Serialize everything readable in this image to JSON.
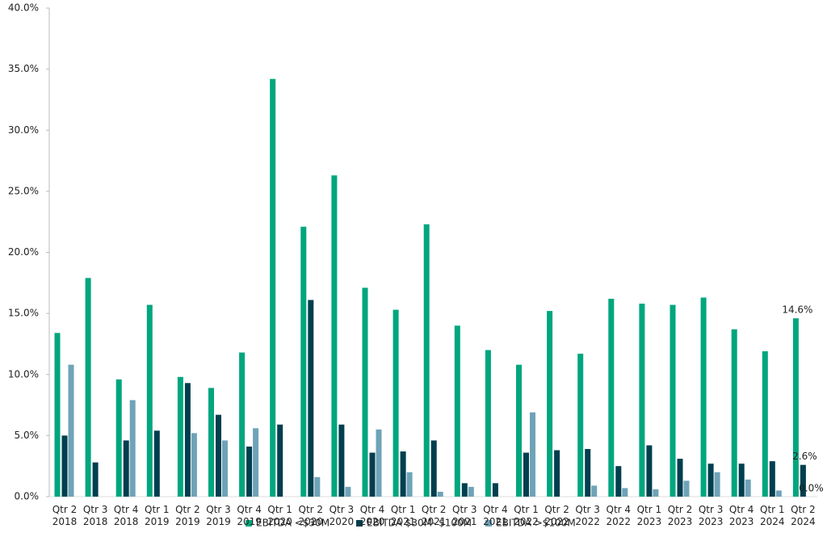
{
  "chart_data": {
    "type": "bar",
    "categories": [
      "Qtr 2 2018",
      "Qtr 3 2018",
      "Qtr 4 2018",
      "Qtr 1 2019",
      "Qtr 2 2019",
      "Qtr 3 2019",
      "Qtr 4 2019",
      "Qtr 1 2020",
      "Qtr 2 2020",
      "Qtr 3 2020",
      "Qtr 4 2020",
      "Qtr 1 2021",
      "Qtr 2 2021",
      "Qtr 3 2021",
      "Qtr 4 2021",
      "Qtr 1 2022",
      "Qtr 2 2022",
      "Qtr 3 2022",
      "Qtr 4 2022",
      "Qtr 1 2023",
      "Qtr 2 2023",
      "Qtr 3 2023",
      "Qtr 4 2023",
      "Qtr 1 2024",
      "Qtr 2 2024"
    ],
    "series": [
      {
        "name": "EBITDA <$30M",
        "color": "#00a67e",
        "values": [
          13.4,
          17.9,
          9.6,
          15.7,
          9.8,
          8.9,
          11.8,
          34.2,
          22.1,
          26.3,
          17.1,
          15.3,
          22.3,
          14.0,
          12.0,
          10.8,
          15.2,
          11.7,
          16.2,
          15.8,
          15.7,
          16.3,
          13.7,
          11.9,
          14.6
        ],
        "value_labels": [
          null,
          null,
          null,
          null,
          null,
          null,
          null,
          null,
          null,
          null,
          null,
          null,
          null,
          null,
          null,
          null,
          null,
          null,
          null,
          null,
          null,
          null,
          null,
          null,
          "14.6%"
        ]
      },
      {
        "name": "EBITDA $30M- $100M",
        "color": "#003f4f",
        "values": [
          5.0,
          2.8,
          4.6,
          5.4,
          9.3,
          6.7,
          4.1,
          5.9,
          16.1,
          5.9,
          3.6,
          3.7,
          4.6,
          1.1,
          1.1,
          3.6,
          3.8,
          3.9,
          2.5,
          4.2,
          3.1,
          2.7,
          2.7,
          2.9,
          2.6
        ],
        "value_labels": [
          null,
          null,
          null,
          null,
          null,
          null,
          null,
          null,
          null,
          null,
          null,
          null,
          null,
          null,
          null,
          null,
          null,
          null,
          null,
          null,
          null,
          null,
          null,
          null,
          "2.6%"
        ]
      },
      {
        "name": "EBITDA >$100M",
        "color": "#6fa3b8",
        "values": [
          10.8,
          0,
          7.9,
          0,
          5.2,
          4.6,
          5.6,
          0,
          1.6,
          0.8,
          5.5,
          2.0,
          0.4,
          0.8,
          0,
          6.9,
          0,
          0.9,
          0.7,
          0.6,
          1.3,
          2.0,
          1.4,
          0.5,
          0.0
        ],
        "value_labels": [
          null,
          null,
          null,
          null,
          null,
          null,
          null,
          null,
          null,
          null,
          null,
          null,
          null,
          null,
          null,
          null,
          null,
          null,
          null,
          null,
          null,
          null,
          null,
          null,
          "0.0%"
        ]
      }
    ],
    "ylim": [
      0,
      40
    ],
    "yticks": [
      {
        "value": 0,
        "label": "0.0%"
      },
      {
        "value": 5,
        "label": "5.0%"
      },
      {
        "value": 10,
        "label": "10.0%"
      },
      {
        "value": 15,
        "label": "15.0%"
      },
      {
        "value": 20,
        "label": "20.0%"
      },
      {
        "value": 25,
        "label": "25.0%"
      },
      {
        "value": 30,
        "label": "30.0%"
      },
      {
        "value": 35,
        "label": "35.0%"
      },
      {
        "value": 40,
        "label": "40.0%"
      }
    ],
    "grid": false,
    "legend": "bottom"
  }
}
